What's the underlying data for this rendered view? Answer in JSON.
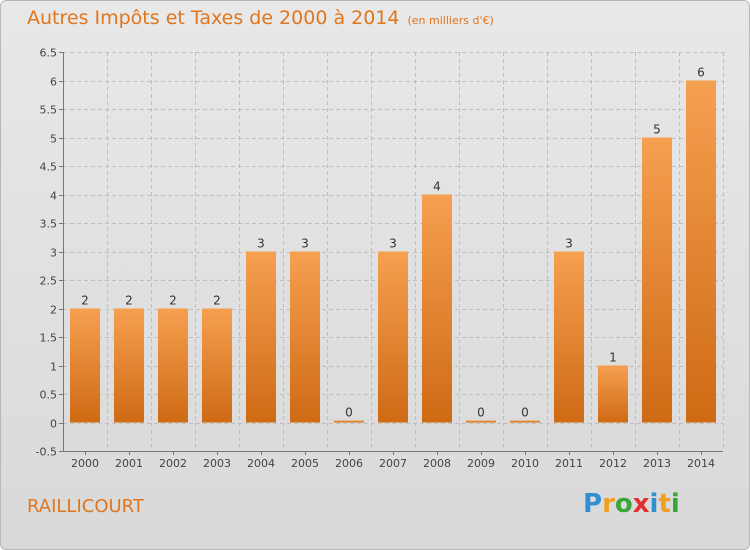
{
  "header": {
    "title": "Autres Impôts et Taxes de 2000 à 2014",
    "unit": "(en milliers d'€)"
  },
  "footer": {
    "commune": "RAILLICOURT",
    "logo_letters": [
      {
        "ch": "P",
        "color": "#2f8fd0"
      },
      {
        "ch": "r",
        "color": "#f0a020"
      },
      {
        "ch": "o",
        "color": "#3aa63a"
      },
      {
        "ch": "x",
        "color": "#e03030"
      },
      {
        "ch": "i",
        "color": "#2f8fd0"
      },
      {
        "ch": "t",
        "color": "#f0a020"
      },
      {
        "ch": "i",
        "color": "#3aa63a"
      }
    ]
  },
  "colors": {
    "title": "#e0761d",
    "bar_top": "#f5a050",
    "bar_bottom": "#cf6a14",
    "grid": "#bfbfbf"
  },
  "chart_data": {
    "type": "bar",
    "categories": [
      "2000",
      "2001",
      "2002",
      "2003",
      "2004",
      "2005",
      "2006",
      "2007",
      "2008",
      "2009",
      "2010",
      "2011",
      "2012",
      "2013",
      "2014"
    ],
    "values": [
      2,
      2,
      2,
      2,
      3,
      3,
      0,
      3,
      4,
      0,
      0,
      3,
      1,
      5,
      6
    ],
    "value_labels": [
      "2",
      "2",
      "2",
      "2",
      "3",
      "3",
      "0",
      "3",
      "4",
      "0",
      "0",
      "3",
      "1",
      "5",
      "6"
    ],
    "y_ticks": [
      -0.5,
      0,
      0.5,
      1,
      1.5,
      2,
      2.5,
      3,
      3.5,
      4,
      4.5,
      5,
      5.5,
      6,
      6.5
    ],
    "y_tick_labels": [
      "-0.5",
      "0",
      "0.5",
      "1",
      "1.5",
      "2",
      "2.5",
      "3",
      "3.5",
      "4",
      "4.5",
      "5",
      "5.5",
      "6",
      "6.5"
    ],
    "ylim": [
      -0.5,
      6.5
    ],
    "grid": true
  }
}
